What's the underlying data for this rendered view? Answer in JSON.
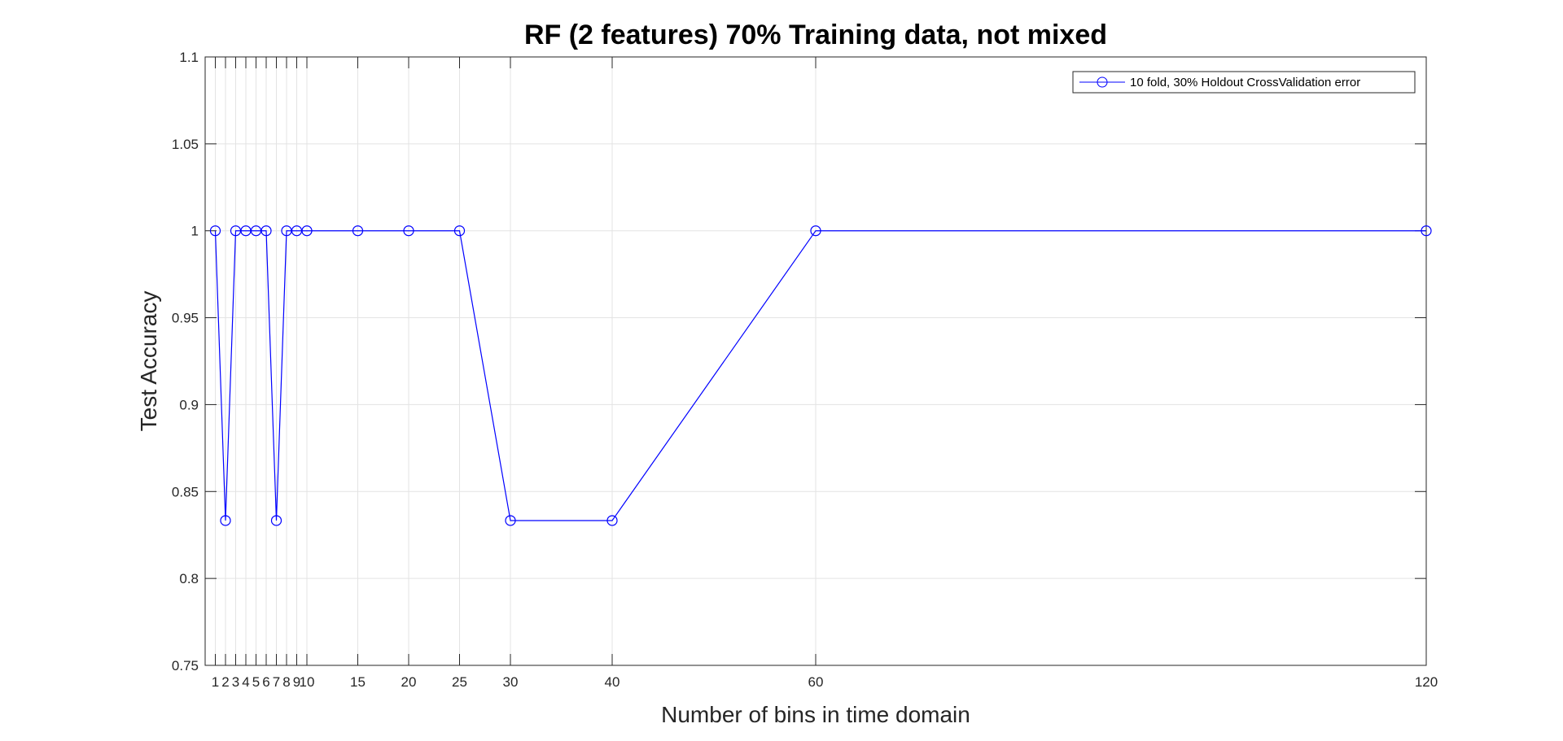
{
  "chart_data": {
    "type": "line",
    "title": "RF (2 features) 70% Training data, not mixed",
    "xlabel": "Number of bins in time domain",
    "ylabel": "Test Accuracy",
    "xlim": [
      0,
      120
    ],
    "ylim": [
      0.75,
      1.1
    ],
    "x_tick_labels": [
      "1",
      "2",
      "3",
      "4",
      "5",
      "6",
      "7",
      "8",
      "9",
      "10",
      "15",
      "20",
      "25",
      "30",
      "40",
      "60",
      "120"
    ],
    "y_tick_labels": [
      "0.75",
      "0.8",
      "0.85",
      "0.9",
      "0.95",
      "1",
      "1.05",
      "1.1"
    ],
    "grid": true,
    "legend_position": "top-right",
    "series": [
      {
        "name": "10 fold, 30% Holdout CrossValidation error",
        "color": "#0000ff",
        "marker": "circle",
        "x": [
          1,
          2,
          3,
          4,
          5,
          6,
          7,
          8,
          9,
          10,
          15,
          20,
          25,
          30,
          40,
          60,
          120
        ],
        "y": [
          1,
          0.8333,
          1,
          1,
          1,
          1,
          0.8333,
          1,
          1,
          1,
          1,
          1,
          1,
          0.8333,
          0.8333,
          1,
          1
        ]
      }
    ]
  }
}
